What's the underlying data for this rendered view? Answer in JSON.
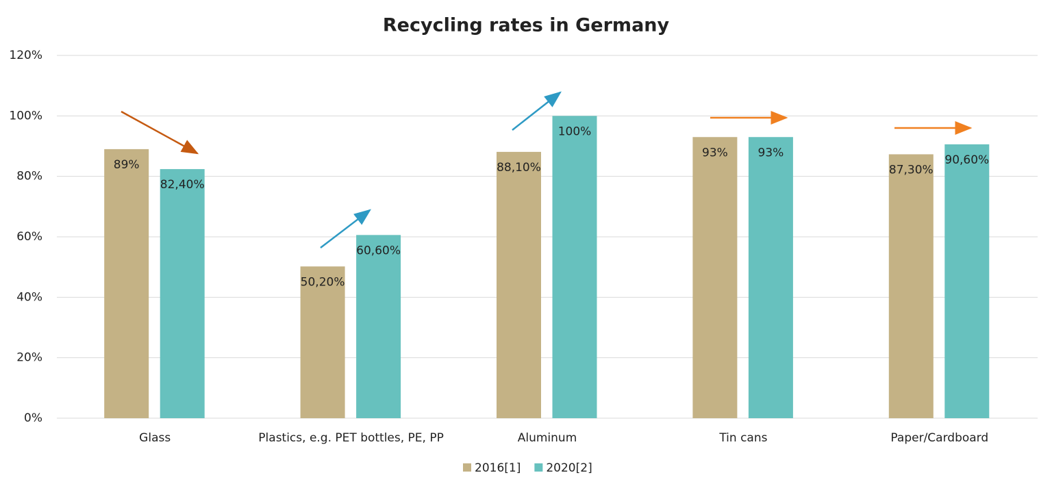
{
  "chart_data": {
    "type": "bar",
    "title": "Recycling rates in Germany",
    "categories": [
      "Glass",
      "Plastics, e.g. PET bottles, PE, PP",
      "Aluminum",
      "Tin cans",
      "Paper/Cardboard"
    ],
    "series": [
      {
        "name": "2016[1]",
        "color": "#c4b285",
        "values": [
          89,
          50.2,
          88.1,
          93,
          87.3
        ],
        "value_labels": [
          "89%",
          "50,20%",
          "88,10%",
          "93%",
          "87,30%"
        ]
      },
      {
        "name": "2020[2]",
        "color": "#67c1be",
        "values": [
          82.4,
          60.6,
          100,
          93,
          90.6
        ],
        "value_labels": [
          "82,40%",
          "60,60%",
          "100%",
          "93%",
          "90,60%"
        ]
      }
    ],
    "ylim": [
      0,
      120
    ],
    "yticks": [
      {
        "value": 0,
        "label": "0%"
      },
      {
        "value": 20,
        "label": "20%"
      },
      {
        "value": 40,
        "label": "40%"
      },
      {
        "value": 60,
        "label": "60%"
      },
      {
        "value": 80,
        "label": "80%"
      },
      {
        "value": 100,
        "label": "100%"
      },
      {
        "value": 120,
        "label": "120%"
      }
    ],
    "grid": true,
    "legend": "bottom"
  }
}
